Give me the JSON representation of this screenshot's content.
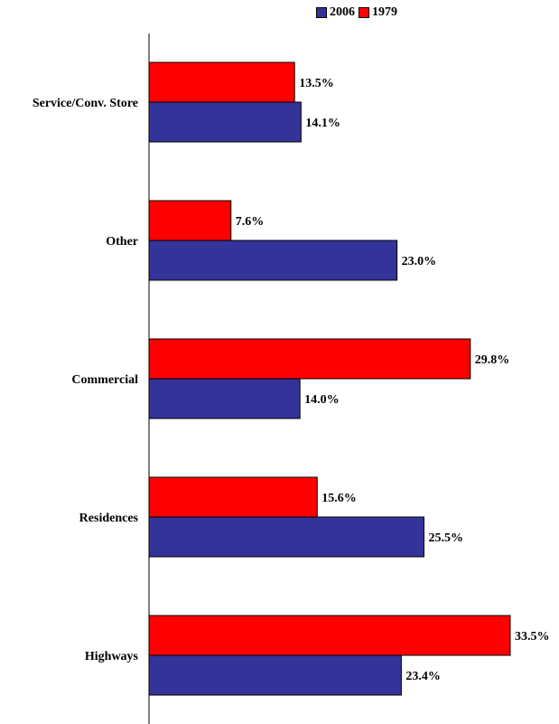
{
  "chart_data": {
    "type": "bar",
    "orientation": "horizontal",
    "categories": [
      "Service/Conv. Store",
      "Other",
      "Commercial",
      "Residences",
      "Highways"
    ],
    "series": [
      {
        "name": "1979",
        "color": "#ff0000",
        "values": [
          13.5,
          7.6,
          29.8,
          15.6,
          33.5
        ],
        "labels": [
          "13.5%",
          "7.6%",
          "29.8%",
          "15.6%",
          "33.5%"
        ]
      },
      {
        "name": "2006",
        "color": "#333399",
        "values": [
          14.1,
          23.0,
          14.0,
          25.5,
          23.4
        ],
        "labels": [
          "14.1%",
          "23.0%",
          "14.0%",
          "25.5%",
          "23.4%"
        ]
      }
    ],
    "legend": [
      {
        "name": "2006",
        "color": "#333399"
      },
      {
        "name": "1979",
        "color": "#ff0000"
      }
    ],
    "legend_position": "top-right",
    "xlim": [
      0,
      35
    ],
    "grid": false
  }
}
